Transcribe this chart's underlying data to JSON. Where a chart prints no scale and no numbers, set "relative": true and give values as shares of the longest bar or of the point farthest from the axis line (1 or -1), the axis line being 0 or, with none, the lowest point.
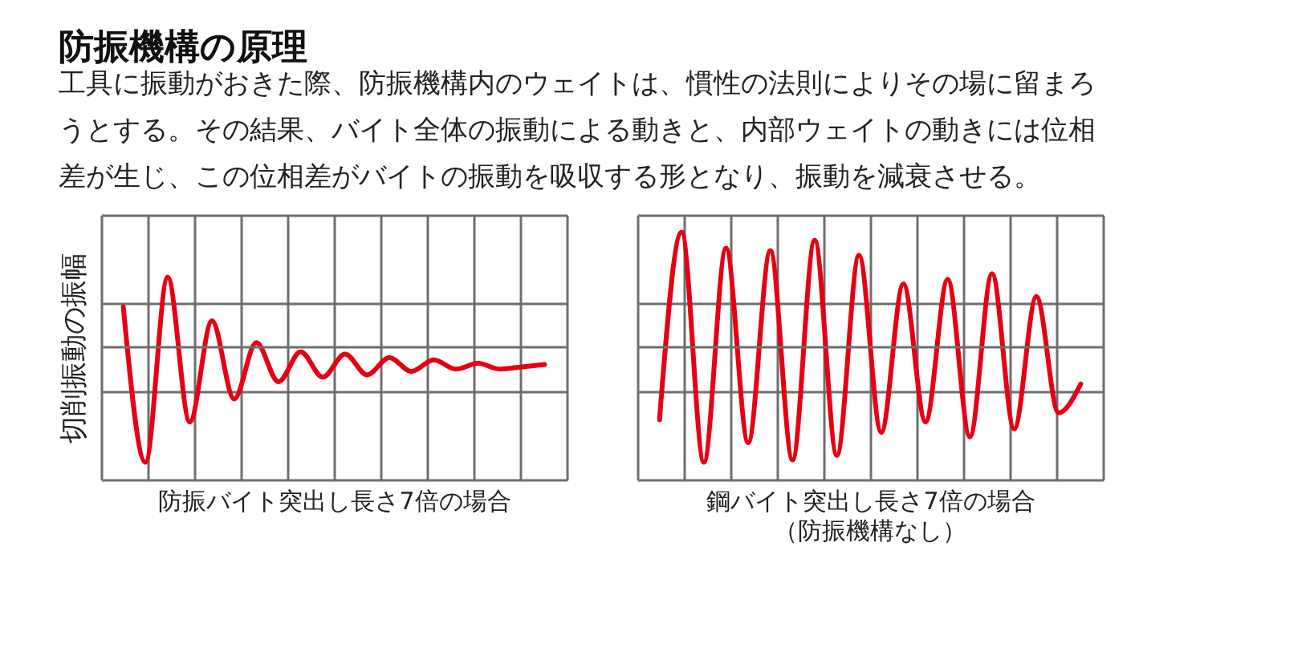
{
  "chart_data": [
    {
      "type": "line",
      "relative": true,
      "title": "防振機構の原理",
      "annotations": [
        "工具に振動がおきた際、防振機構内のウェイトは、慣性の法則によりその場に留まろうとする。その結果、バイト全体の振動による動きと、内部ウェイトの動きには位相差が生じ、この位相差がバイトの振動を吸収する形となり、振動を減衰させる。"
      ],
      "ylabel": "切削振動の振幅",
      "xlabel": "防振バイト突出し長さ7倍の場合",
      "grid": true,
      "tick_labels": false,
      "categories": [
        null,
        null,
        null,
        null,
        null,
        null,
        null,
        null,
        null,
        null,
        null,
        null,
        null,
        null,
        null,
        null,
        null,
        null,
        null,
        null
      ],
      "series": [
        {
          "color": "#e60012",
          "values": [
            0.35,
            -1,
            0.61,
            -0.65,
            0.23,
            -0.45,
            0.04,
            -0.3,
            -0.04,
            -0.26,
            -0.06,
            -0.24,
            -0.09,
            -0.21,
            -0.11,
            -0.19,
            -0.14,
            -0.19,
            -0.17,
            -0.15
          ]
        }
      ]
    },
    {
      "type": "line",
      "relative": true,
      "xlabel": "鋼バイト突出し長さ7倍の場合",
      "annotations": [
        "（防振機構なし）"
      ],
      "grid": true,
      "tick_labels": false,
      "categories": [
        null,
        null,
        null,
        null,
        null,
        null,
        null,
        null,
        null,
        null,
        null,
        null,
        null,
        null,
        null,
        null,
        null,
        null,
        null,
        null
      ],
      "series": [
        {
          "color": "#e60012",
          "values": [
            -0.63,
            1.0,
            -1.0,
            0.86,
            -0.83,
            0.84,
            -0.98,
            0.93,
            -0.94,
            0.8,
            -0.74,
            0.55,
            -0.65,
            0.59,
            -0.78,
            0.64,
            -0.71,
            0.44,
            -0.57,
            -0.32
          ]
        }
      ]
    }
  ]
}
